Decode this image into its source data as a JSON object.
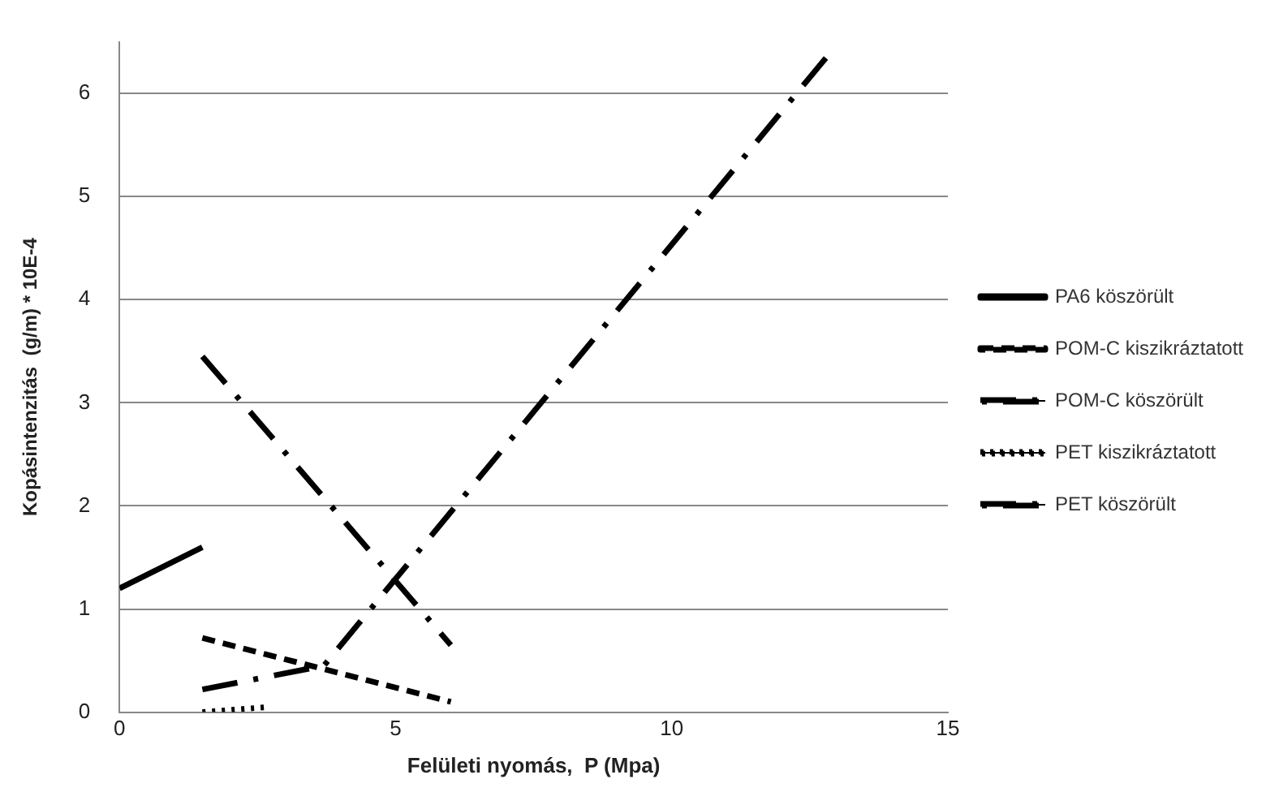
{
  "chart_data": {
    "type": "line",
    "xlabel": "Felületi nyomás,  P (Mpa)",
    "ylabel": "Kopásintenzitás  (g/m) * 10E-4",
    "xlim": [
      0,
      15
    ],
    "xticks": [
      0,
      5,
      10,
      15
    ],
    "ylim": [
      0,
      6.5
    ],
    "yticks": [
      0,
      1,
      2,
      3,
      4,
      5,
      6
    ],
    "grid": "y",
    "legend": "right",
    "marker": "none",
    "series": [
      {
        "name": "PA6 köszörült",
        "color": "#000000",
        "line_style": "solid",
        "x": [
          0,
          1.5
        ],
        "values": [
          1.2,
          1.6
        ]
      },
      {
        "name": "POM-C kiszikráztatott",
        "color": "#000000",
        "line_style": "dashed",
        "x": [
          1.5,
          6
        ],
        "values": [
          0.72,
          0.1
        ]
      },
      {
        "name": "POM-C köszörült",
        "color": "#000000",
        "line_style": "dashdot",
        "x": [
          1.5,
          6
        ],
        "values": [
          3.45,
          0.65
        ]
      },
      {
        "name": "PET kiszikráztatott",
        "color": "#000000",
        "line_style": "dotted",
        "x": [
          1.5,
          2.7
        ],
        "values": [
          0.0,
          0.05
        ]
      },
      {
        "name": "PET köszörült",
        "color": "#000000",
        "line_style": "dashdot",
        "x": [
          1.5,
          3.7,
          12.8
        ],
        "values": [
          0.22,
          0.45,
          6.35
        ]
      }
    ]
  }
}
